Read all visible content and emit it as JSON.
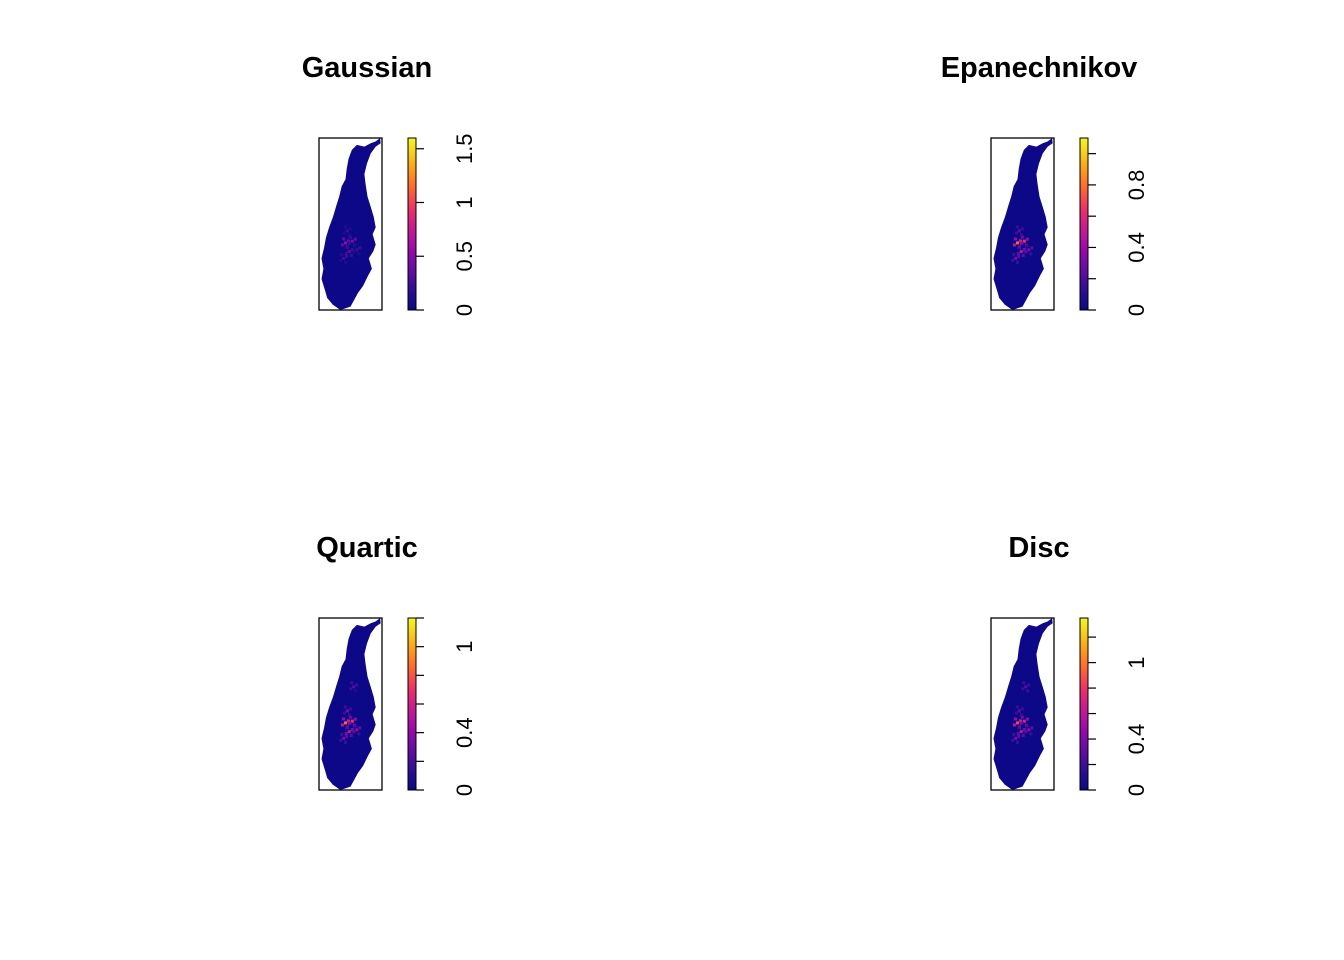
{
  "colors": {
    "palette": [
      "#0d0887",
      "#1e0e8e",
      "#3a0f98",
      "#5b0ea3",
      "#7a0ba8",
      "#9a0aa8",
      "#b6179f",
      "#d01f8a",
      "#e52f6e",
      "#f34a51",
      "#fb6a35",
      "#fd8d20",
      "#fbb21a",
      "#f5d61d",
      "#f0f921"
    ],
    "background": "#ffffff",
    "frame": "#000000",
    "map_base": "#0d0887"
  },
  "chart_data": [
    {
      "type": "heatmap",
      "title": "Gaussian",
      "legend": "colorbar-right",
      "zlim": [
        0,
        1.6
      ],
      "colorbar_ticks": [
        0,
        0.5,
        1,
        1.5
      ],
      "tick_labels": [
        "0",
        "0.5",
        "1",
        "1.5"
      ],
      "minor_ticks": [],
      "hotspots": [
        [
          0.42,
          0.61,
          0.55
        ],
        [
          0.53,
          0.6,
          0.45
        ],
        [
          0.48,
          0.66,
          0.35
        ],
        [
          0.39,
          0.7,
          0.25
        ],
        [
          0.6,
          0.65,
          0.28
        ],
        [
          0.45,
          0.54,
          0.2
        ]
      ]
    },
    {
      "type": "heatmap",
      "title": "Epanechnikov",
      "legend": "colorbar-right",
      "zlim": [
        0,
        1.1
      ],
      "colorbar_ticks": [
        0,
        0.2,
        0.4,
        0.6,
        0.8,
        1.0
      ],
      "tick_labels": [
        "0",
        "",
        "0.4",
        "",
        "0.8",
        ""
      ],
      "minor_ticks": [],
      "hotspots": [
        [
          0.42,
          0.61,
          0.75
        ],
        [
          0.53,
          0.6,
          0.6
        ],
        [
          0.48,
          0.66,
          0.45
        ],
        [
          0.39,
          0.7,
          0.3
        ],
        [
          0.6,
          0.65,
          0.35
        ],
        [
          0.45,
          0.54,
          0.25
        ]
      ]
    },
    {
      "type": "heatmap",
      "title": "Quartic",
      "legend": "colorbar-right",
      "zlim": [
        0,
        1.2
      ],
      "colorbar_ticks": [
        0,
        0.2,
        0.4,
        0.6,
        0.8,
        1.0,
        1.2
      ],
      "tick_labels": [
        "0",
        "",
        "0.4",
        "",
        "",
        "1",
        ""
      ],
      "minor_ticks": [],
      "hotspots": [
        [
          0.42,
          0.61,
          0.85
        ],
        [
          0.53,
          0.6,
          0.65
        ],
        [
          0.48,
          0.66,
          0.5
        ],
        [
          0.39,
          0.7,
          0.35
        ],
        [
          0.6,
          0.65,
          0.4
        ],
        [
          0.45,
          0.54,
          0.3
        ],
        [
          0.55,
          0.4,
          0.25
        ]
      ]
    },
    {
      "type": "heatmap",
      "title": "Disc",
      "legend": "colorbar-right",
      "zlim": [
        0,
        1.35
      ],
      "colorbar_ticks": [
        0,
        0.2,
        0.4,
        0.6,
        0.8,
        1.0,
        1.2
      ],
      "tick_labels": [
        "0",
        "",
        "0.4",
        "",
        "",
        "1",
        ""
      ],
      "minor_ticks": [],
      "hotspots": [
        [
          0.42,
          0.61,
          0.9
        ],
        [
          0.53,
          0.6,
          0.7
        ],
        [
          0.48,
          0.66,
          0.55
        ],
        [
          0.39,
          0.7,
          0.4
        ],
        [
          0.6,
          0.65,
          0.45
        ],
        [
          0.45,
          0.54,
          0.3
        ],
        [
          0.55,
          0.4,
          0.3
        ]
      ]
    }
  ]
}
